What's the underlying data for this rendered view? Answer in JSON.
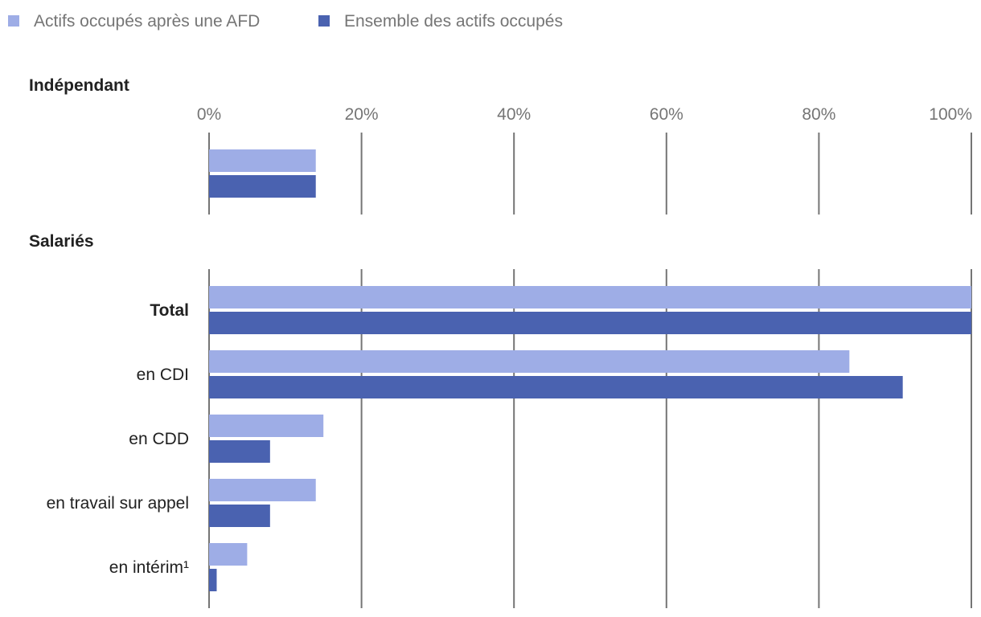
{
  "chart_data": {
    "type": "bar",
    "orientation": "horizontal",
    "legend": {
      "position": "top-left",
      "entries": [
        {
          "name": "Actifs occupés après une AFD",
          "color": "#9eade6"
        },
        {
          "name": "Ensemble des actifs occupés",
          "color": "#4a62b0"
        }
      ]
    },
    "x_ticks": [
      "0%",
      "20%",
      "40%",
      "60%",
      "80%",
      "100%"
    ],
    "xlim": [
      0,
      100
    ],
    "grid": true,
    "panels": [
      {
        "title": "Indépendant",
        "categories": [
          {
            "label": "",
            "bold": false
          }
        ],
        "series": [
          {
            "name": "Actifs occupés après une AFD",
            "values": [
              14
            ]
          },
          {
            "name": "Ensemble des actifs occupés",
            "values": [
              14
            ]
          }
        ]
      },
      {
        "title": "Salariés",
        "categories": [
          {
            "label": "Total",
            "bold": true
          },
          {
            "label": "en CDI",
            "bold": false
          },
          {
            "label": "en CDD",
            "bold": false
          },
          {
            "label": "en travail sur appel",
            "bold": false
          },
          {
            "label": "en intérim¹",
            "bold": false
          }
        ],
        "series": [
          {
            "name": "Actifs occupés après une AFD",
            "values": [
              100,
              84,
              15,
              14,
              5
            ]
          },
          {
            "name": "Ensemble des actifs occupés",
            "values": [
              100,
              91,
              8,
              8,
              1
            ]
          }
        ]
      }
    ]
  }
}
